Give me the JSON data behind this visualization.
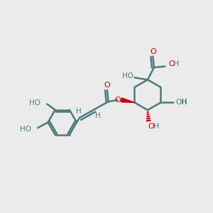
{
  "bg_color": "#ebebeb",
  "bond_color": "#4a7c7c",
  "o_color": "#cc0000",
  "h_color": "#4a7c7c",
  "bond_width": 1.8,
  "figsize": [
    3.0,
    3.0
  ],
  "dpi": 100,
  "xlim": [
    0,
    10
  ],
  "ylim": [
    0,
    10
  ]
}
